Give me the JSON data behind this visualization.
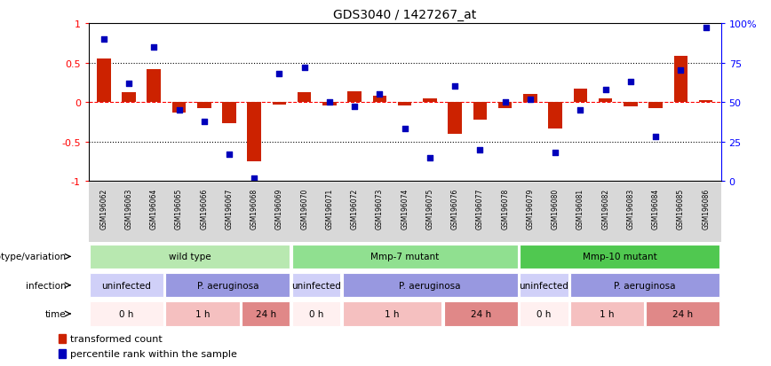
{
  "title": "GDS3040 / 1427267_at",
  "samples": [
    "GSM196062",
    "GSM196063",
    "GSM196064",
    "GSM196065",
    "GSM196066",
    "GSM196067",
    "GSM196068",
    "GSM196069",
    "GSM196070",
    "GSM196071",
    "GSM196072",
    "GSM196073",
    "GSM196074",
    "GSM196075",
    "GSM196076",
    "GSM196077",
    "GSM196078",
    "GSM196079",
    "GSM196080",
    "GSM196081",
    "GSM196082",
    "GSM196083",
    "GSM196084",
    "GSM196085",
    "GSM196086"
  ],
  "transformed_count": [
    0.55,
    0.13,
    0.42,
    -0.13,
    -0.08,
    -0.27,
    -0.75,
    -0.03,
    0.12,
    -0.04,
    0.14,
    0.08,
    -0.04,
    0.05,
    -0.4,
    -0.22,
    -0.08,
    0.1,
    -0.33,
    0.17,
    0.05,
    -0.05,
    -0.08,
    0.58,
    0.02
  ],
  "percentile_rank": [
    90,
    62,
    85,
    45,
    38,
    17,
    2,
    68,
    72,
    50,
    47,
    55,
    33,
    15,
    60,
    20,
    50,
    52,
    18,
    45,
    58,
    63,
    28,
    70,
    97
  ],
  "genotype_groups": [
    {
      "label": "wild type",
      "start": 0,
      "end": 8,
      "color": "#b8e8b0"
    },
    {
      "label": "Mmp-7 mutant",
      "start": 8,
      "end": 17,
      "color": "#90e090"
    },
    {
      "label": "Mmp-10 mutant",
      "start": 17,
      "end": 25,
      "color": "#50c850"
    }
  ],
  "infection_groups": [
    {
      "label": "uninfected",
      "start": 0,
      "end": 3,
      "color": "#d0d0f8"
    },
    {
      "label": "P. aeruginosa",
      "start": 3,
      "end": 8,
      "color": "#9898e0"
    },
    {
      "label": "uninfected",
      "start": 8,
      "end": 10,
      "color": "#d0d0f8"
    },
    {
      "label": "P. aeruginosa",
      "start": 10,
      "end": 17,
      "color": "#9898e0"
    },
    {
      "label": "uninfected",
      "start": 17,
      "end": 19,
      "color": "#d0d0f8"
    },
    {
      "label": "P. aeruginosa",
      "start": 19,
      "end": 25,
      "color": "#9898e0"
    }
  ],
  "time_groups": [
    {
      "label": "0 h",
      "start": 0,
      "end": 3,
      "color": "#fff0f0"
    },
    {
      "label": "1 h",
      "start": 3,
      "end": 6,
      "color": "#f5c0c0"
    },
    {
      "label": "24 h",
      "start": 6,
      "end": 8,
      "color": "#e08888"
    },
    {
      "label": "0 h",
      "start": 8,
      "end": 10,
      "color": "#fff0f0"
    },
    {
      "label": "1 h",
      "start": 10,
      "end": 14,
      "color": "#f5c0c0"
    },
    {
      "label": "24 h",
      "start": 14,
      "end": 17,
      "color": "#e08888"
    },
    {
      "label": "0 h",
      "start": 17,
      "end": 19,
      "color": "#fff0f0"
    },
    {
      "label": "1 h",
      "start": 19,
      "end": 22,
      "color": "#f5c0c0"
    },
    {
      "label": "24 h",
      "start": 22,
      "end": 25,
      "color": "#e08888"
    }
  ],
  "bar_color": "#cc2200",
  "dot_color": "#0000bb",
  "ylim": [
    -1.0,
    1.0
  ],
  "y2lim": [
    0,
    100
  ],
  "y2ticks": [
    0,
    25,
    50,
    75,
    100
  ],
  "y2ticklabels": [
    "0",
    "25",
    "50",
    "75",
    "100%"
  ],
  "yticks": [
    -1.0,
    -0.5,
    0.0,
    0.5,
    1.0
  ],
  "ytick_labels": [
    "-1",
    "-0.5",
    "0",
    "0.5",
    "1"
  ],
  "legend_items": [
    {
      "label": "transformed count",
      "color": "#cc2200"
    },
    {
      "label": "percentile rank within the sample",
      "color": "#0000bb"
    }
  ],
  "sample_label_bg": "#d8d8d8"
}
